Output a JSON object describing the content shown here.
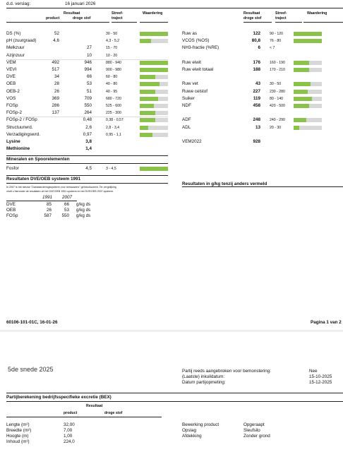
{
  "header": {
    "dd_label": "d.d. verslag:",
    "date": "16 januari 2026"
  },
  "left_headers": {
    "resultaat": "Resultaat",
    "product": "product",
    "droge_stof": "droge stof",
    "streef": "Streef-",
    "traject": "traject",
    "waardering": "Waardering"
  },
  "right_headers": {
    "resultaat": "Resultaat",
    "droge_stof": "droge stof",
    "streef": "Streef-",
    "traject": "traject",
    "waardering": "Waardering"
  },
  "left_rows": [
    {
      "label": "DS (%)",
      "product": "52",
      "ds": "",
      "range": "30 - 50",
      "fill": 1.0
    },
    {
      "label": "pH (zuurgraad)",
      "product": "4,6",
      "ds": "",
      "range": "4,3 - 5,2",
      "fill": 0.4
    },
    {
      "label": "Melkzuur",
      "product": "",
      "ds": "27",
      "range": "15 - 70",
      "fill": null
    },
    {
      "label": "Azijnzuur",
      "product": "",
      "ds": "10",
      "range": "10 - 20",
      "fill": null
    },
    {
      "label": "VEM",
      "product": "492",
      "ds": "946",
      "range": "880 - 940",
      "fill": 1.0
    },
    {
      "label": "VEVI",
      "product": "517",
      "ds": "994",
      "range": "900 - 980",
      "fill": 1.0
    },
    {
      "label": "DVE",
      "product": "34",
      "ds": "66",
      "range": "60 - 80",
      "fill": 0.55
    },
    {
      "label": "OEB",
      "product": "28",
      "ds": "53",
      "range": "40 - 80",
      "fill": 0.7
    },
    {
      "label": "OEB-2",
      "product": "26",
      "ds": "51",
      "range": "40 - 95",
      "fill": 0.55
    },
    {
      "label": "VOS",
      "product": "369",
      "ds": "709",
      "range": "680 - 720",
      "fill": 0.65
    },
    {
      "label": "FOSp",
      "product": "286",
      "ds": "550",
      "range": "525 - 600",
      "fill": 0.5
    },
    {
      "label": "FOSp-2",
      "product": "137",
      "ds": "264",
      "range": "225 - 300",
      "fill": 0.55
    },
    {
      "label": "FOSp-2 / FOSp",
      "product": "",
      "ds": "0,48",
      "range": "0,38 - 0,57",
      "fill": 0.55
    },
    {
      "label": "Structuurwrd.",
      "product": "",
      "ds": "2,6",
      "range": "2,8 - 3,4",
      "fill": 0.3
    },
    {
      "label": "Verzadigingswrd.",
      "product": "",
      "ds": "0,97",
      "range": "0,95 - 1,1",
      "fill": 0.45
    },
    {
      "label": "Lysine",
      "product": "",
      "ds": "3,8",
      "range": "",
      "fill": null
    },
    {
      "label": "Methionine",
      "product": "",
      "ds": "1,4",
      "range": "",
      "fill": null
    }
  ],
  "right_rows": [
    {
      "label": "Ruw as",
      "ds": "122",
      "range": "90 - 120",
      "fill": 1.0
    },
    {
      "label": "VCOS (%OS)",
      "ds": "80,8",
      "range": "76 - 80",
      "fill": 1.0
    },
    {
      "label": "NH3-fractie (%RE)",
      "ds": "6",
      "range": "< 7",
      "fill": null
    },
    {
      "label": "",
      "ds": "",
      "range": "",
      "fill": null
    },
    {
      "label": "Ruw eiwit",
      "ds": "176",
      "range": "160 - 190",
      "fill": 0.55
    },
    {
      "label": "Ruw eiwit totaal",
      "ds": "188",
      "range": "170 - 210",
      "fill": 0.55
    },
    {
      "label": "",
      "ds": "",
      "range": "",
      "fill": null
    },
    {
      "label": "Ruw vet",
      "ds": "43",
      "range": "30 - 50",
      "fill": 0.6
    },
    {
      "label": "Ruwe celstof",
      "ds": "227",
      "range": "230 - 280",
      "fill": 0.5
    },
    {
      "label": "Suiker",
      "ds": "119",
      "range": "80 - 140",
      "fill": 0.65
    },
    {
      "label": "NDF",
      "ds": "458",
      "range": "420 - 500",
      "fill": 0.55
    },
    {
      "label": "",
      "ds": "",
      "range": "",
      "fill": null
    },
    {
      "label": "ADF",
      "ds": "248",
      "range": "240 - 290",
      "fill": 0.45
    },
    {
      "label": "ADL",
      "ds": "13",
      "range": "20 - 30",
      "fill": 0.2
    },
    {
      "label": "",
      "ds": "",
      "range": "",
      "fill": null
    },
    {
      "label": "VEM2022",
      "ds": "928",
      "range": "",
      "fill": null
    }
  ],
  "minerals": {
    "title": "Mineralen en Spoorelementen",
    "label": "Fosfor",
    "value": "4,5",
    "range": "3 - 4,5",
    "fill": 1.0
  },
  "dve": {
    "title": "Resultaten DVE/OEB systeem 1991",
    "note1": "In 2007 is het nieuwe \"Darlwaarderingssysteem voor herkauwers\" geïntroduceerd. Ter vergelijking",
    "note2": "vindt u hieronder de resultaten uit het DVE/OEB 1991 systeem en het DVE/OEB 2007 systeem.",
    "col1": "1991",
    "col2": "2007",
    "rows": [
      {
        "label": "DVE",
        "v1": "85",
        "v2": "66",
        "unit": "g/kg ds"
      },
      {
        "label": "OEB",
        "v1": "26",
        "v2": "53",
        "unit": "g/kg ds"
      },
      {
        "label": "FOSp",
        "v1": "587",
        "v2": "550",
        "unit": "g/kg ds"
      }
    ]
  },
  "right_note": "Resultaten in g/kg tenzij anders vermeld",
  "footer": {
    "code": "60106-101-01C, 16-01-26",
    "page": "Pagina 1 van 2"
  },
  "page2": {
    "title": "5de snede 2025",
    "info": [
      {
        "label": "Partij reeds aangebroken voor bemonstering:",
        "value": "Nee"
      },
      {
        "label": "(Laatste) inkuildatum:",
        "value": "15-10-2025"
      },
      {
        "label": "Datum partijopmeting:",
        "value": "15-12-2025"
      }
    ],
    "bex_title": "Partijberekening bedrijfsspecifieke excretie (BEX)",
    "bex_resultaat": "Resultaat",
    "bex_product": "product",
    "bex_ds": "droge stof",
    "dims": [
      {
        "label": "Lengte (m²)",
        "value": "32,00"
      },
      {
        "label": "Breedte (m²)",
        "value": "7,00"
      },
      {
        "label": "Hoogte (m)",
        "value": "1,00"
      },
      {
        "label": "Inhoud (m³)",
        "value": "224,0"
      }
    ],
    "props": [
      {
        "label": "Bewerking product",
        "value": "Opgeraapt"
      },
      {
        "label": "Opslag",
        "value": "Sleufsilo"
      },
      {
        "label": "Afdekking",
        "value": "Zonder grond"
      }
    ]
  }
}
